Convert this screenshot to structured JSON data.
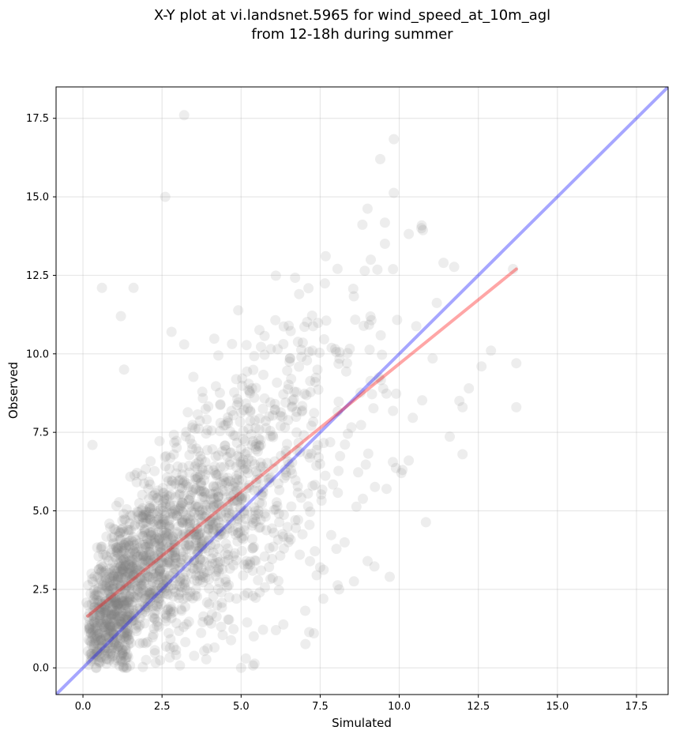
{
  "chart_data": {
    "type": "scatter",
    "title_line1": "X-Y plot at vi.landsnet.5965 for wind_speed_at_10m_agl",
    "title_line2": "from 12-18h during summer",
    "xlabel": "Simulated",
    "ylabel": "Observed",
    "xlim": [
      -0.85,
      18.5
    ],
    "ylim": [
      -0.85,
      18.5
    ],
    "xticks": [
      0.0,
      2.5,
      5.0,
      7.5,
      10.0,
      12.5,
      15.0,
      17.5
    ],
    "yticks": [
      0.0,
      2.5,
      5.0,
      7.5,
      10.0,
      12.5,
      15.0,
      17.5
    ],
    "xtick_labels": [
      "0.0",
      "2.5",
      "5.0",
      "7.5",
      "10.0",
      "12.5",
      "15.0",
      "17.5"
    ],
    "ytick_labels": [
      "0.0",
      "2.5",
      "5.0",
      "7.5",
      "10.0",
      "12.5",
      "15.0",
      "17.5"
    ],
    "grid": true,
    "point_color": "#808080",
    "identity_line": {
      "color": "#0000ff",
      "from": [
        -0.85,
        -0.85
      ],
      "to": [
        18.5,
        18.5
      ]
    },
    "fit_line": {
      "color": "#ff0000",
      "from": [
        0.15,
        1.65
      ],
      "to": [
        13.7,
        12.7
      ]
    },
    "outliers": [
      {
        "x": 3.2,
        "y": 17.6
      },
      {
        "x": 9.4,
        "y": 16.2
      },
      {
        "x": 2.6,
        "y": 15.0
      },
      {
        "x": 10.7,
        "y": 14.0
      },
      {
        "x": 0.6,
        "y": 12.1
      },
      {
        "x": 1.6,
        "y": 12.1
      },
      {
        "x": 9.1,
        "y": 13.0
      },
      {
        "x": 11.4,
        "y": 12.9
      },
      {
        "x": 13.6,
        "y": 12.7
      },
      {
        "x": 13.7,
        "y": 9.7
      },
      {
        "x": 13.7,
        "y": 8.3
      },
      {
        "x": 12.9,
        "y": 10.1
      },
      {
        "x": 12.6,
        "y": 9.6
      },
      {
        "x": 12.2,
        "y": 8.9
      },
      {
        "x": 12.0,
        "y": 8.3
      },
      {
        "x": 11.9,
        "y": 8.5
      },
      {
        "x": 7.3,
        "y": 1.1
      },
      {
        "x": 9.7,
        "y": 2.9
      },
      {
        "x": 8.1,
        "y": 2.5
      },
      {
        "x": 7.6,
        "y": 2.2
      },
      {
        "x": 5.0,
        "y": 0.0
      },
      {
        "x": 0.3,
        "y": 7.1
      },
      {
        "x": 1.2,
        "y": 11.2
      },
      {
        "x": 2.8,
        "y": 10.7
      },
      {
        "x": 3.2,
        "y": 10.3
      },
      {
        "x": 1.3,
        "y": 9.5
      },
      {
        "x": 10.3,
        "y": 6.6
      },
      {
        "x": 10.1,
        "y": 6.3
      },
      {
        "x": 9.6,
        "y": 5.7
      },
      {
        "x": 9.0,
        "y": 3.4
      },
      {
        "x": 7.5,
        "y": 3.2
      },
      {
        "x": 6.1,
        "y": 1.2
      }
    ]
  }
}
